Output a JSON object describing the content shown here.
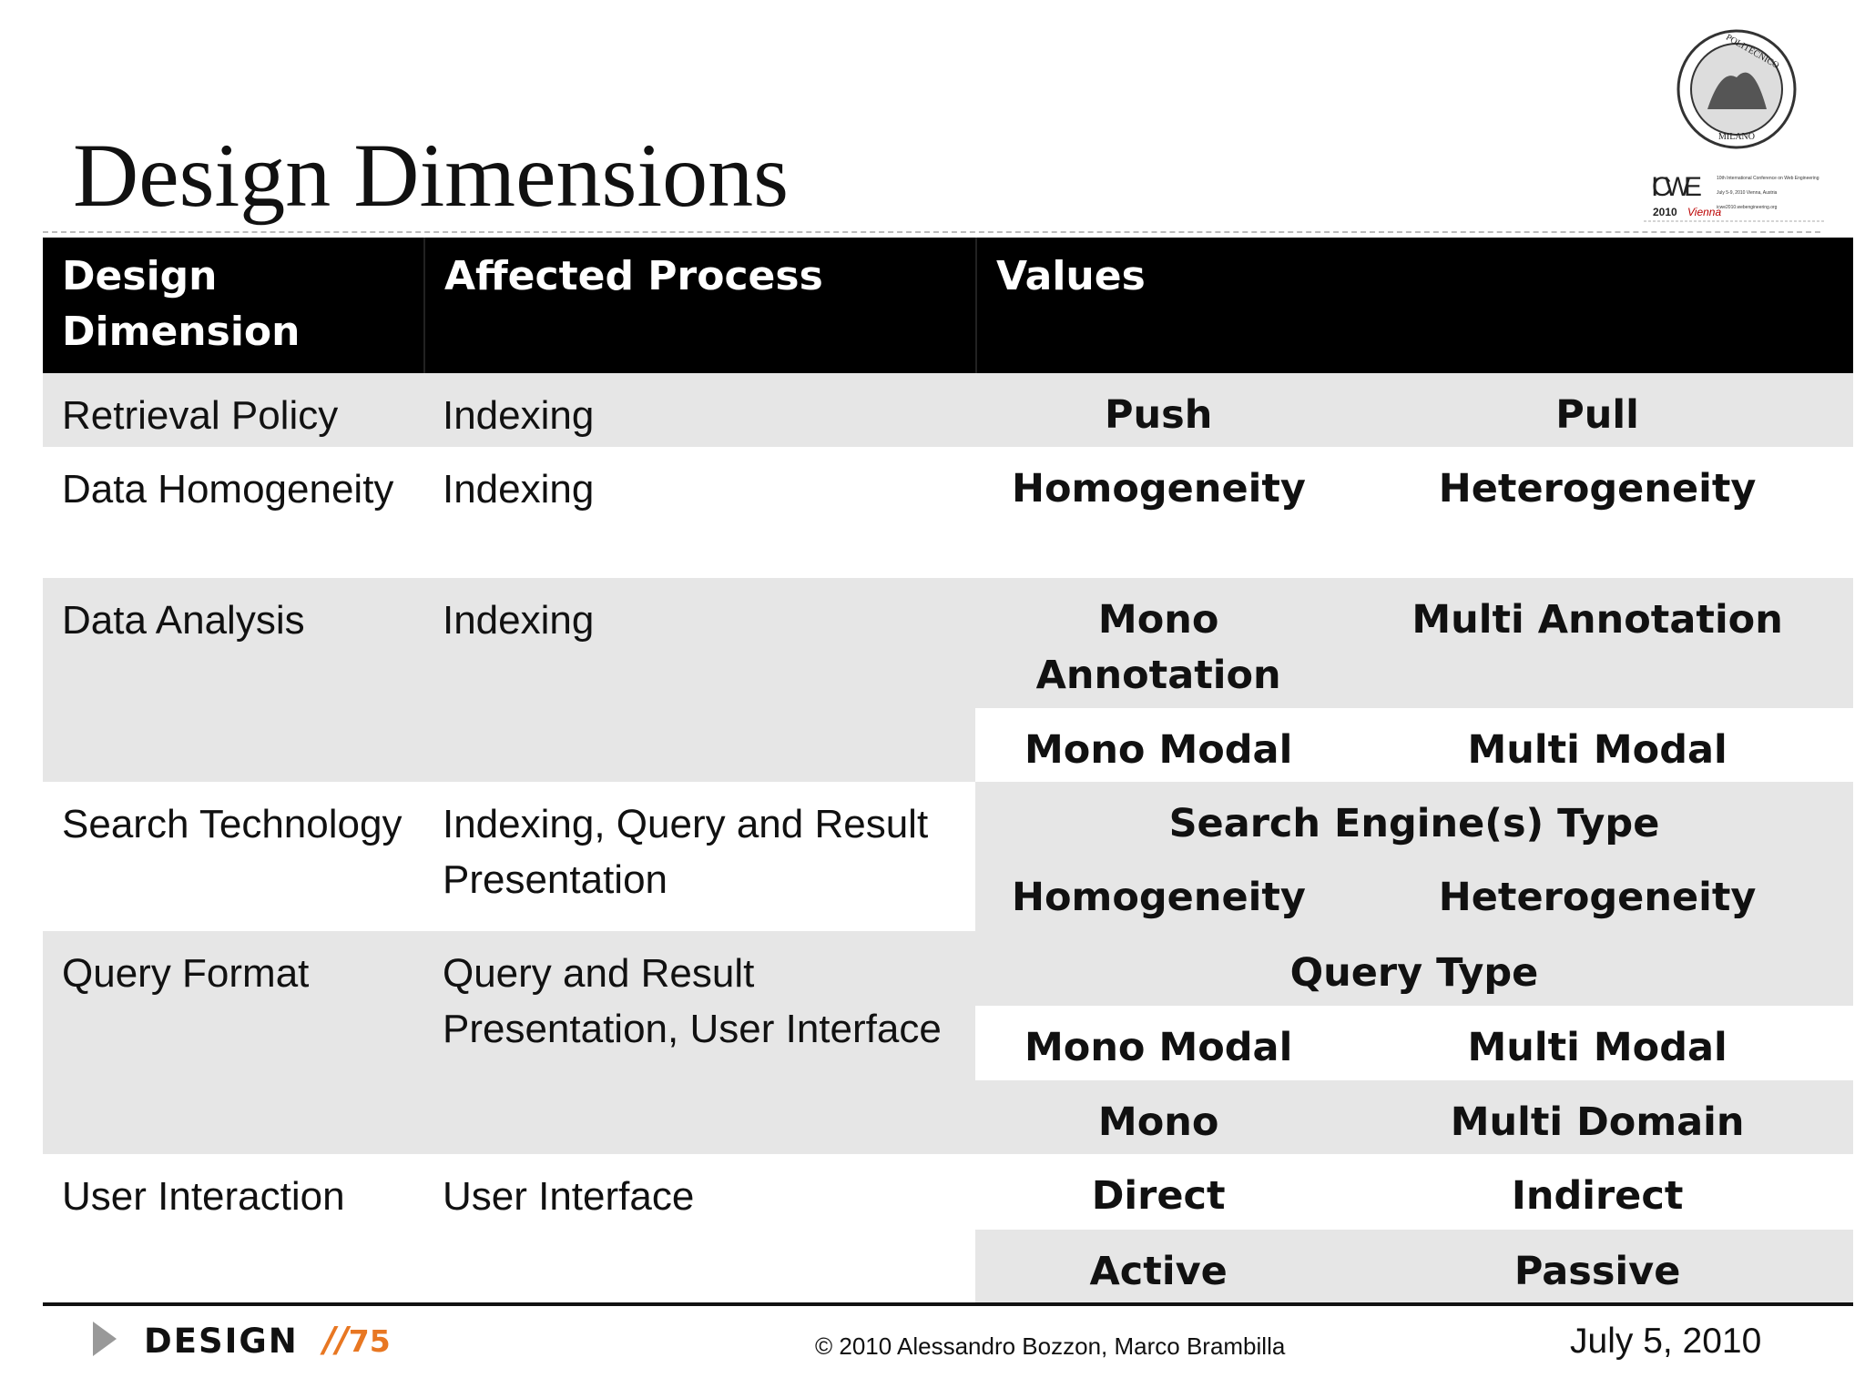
{
  "title": "Design Dimensions",
  "logo": {
    "seal_top": "POLITECNICO",
    "seal_bottom": "MILANO",
    "conference": "ICWE",
    "year": "2010",
    "city": "Vienna",
    "details": [
      "10th International Conference on Web Engineering",
      "July 5-9, 2010 Vienna, Austria",
      "icwe2010.webengineering.org"
    ]
  },
  "table": {
    "header": [
      "Design Dimension",
      "Affected Process",
      "Values"
    ],
    "rows": [
      {
        "dimension": "Retrieval Policy",
        "process": "Indexing",
        "values": [
          [
            "Push",
            "Pull"
          ]
        ]
      },
      {
        "dimension": "Data Homogeneity",
        "process": "Indexing",
        "values": [
          [
            "Homogeneity",
            "Heterogeneity"
          ]
        ]
      },
      {
        "dimension": "Data Analysis",
        "process": "Indexing",
        "values": [
          [
            "Mono Annotation",
            "Multi Annotation"
          ],
          [
            "Mono Modal",
            "Multi Modal"
          ]
        ]
      },
      {
        "dimension": "Search Technology",
        "process": "Indexing, Query and Result Presentation",
        "values": [
          [
            "Search Engine(s) Type"
          ],
          [
            "Homogeneity",
            "Heterogeneity"
          ]
        ]
      },
      {
        "dimension": "Query Format",
        "process": "Query and Result Presentation, User Interface",
        "values": [
          [
            "Query Type"
          ],
          [
            "Mono Modal",
            "Multi Modal"
          ],
          [
            "Mono",
            "Multi Domain"
          ]
        ]
      },
      {
        "dimension": "User Interaction",
        "process": "User Interface",
        "values": [
          [
            "Direct",
            "Indirect"
          ],
          [
            "Active",
            "Passive"
          ]
        ]
      }
    ]
  },
  "footer": {
    "section": "DESIGN",
    "page_prefix": "//",
    "page": "75",
    "copyright": "© 2010 Alessandro Bozzon, Marco Brambilla",
    "date": "July 5, 2010"
  }
}
